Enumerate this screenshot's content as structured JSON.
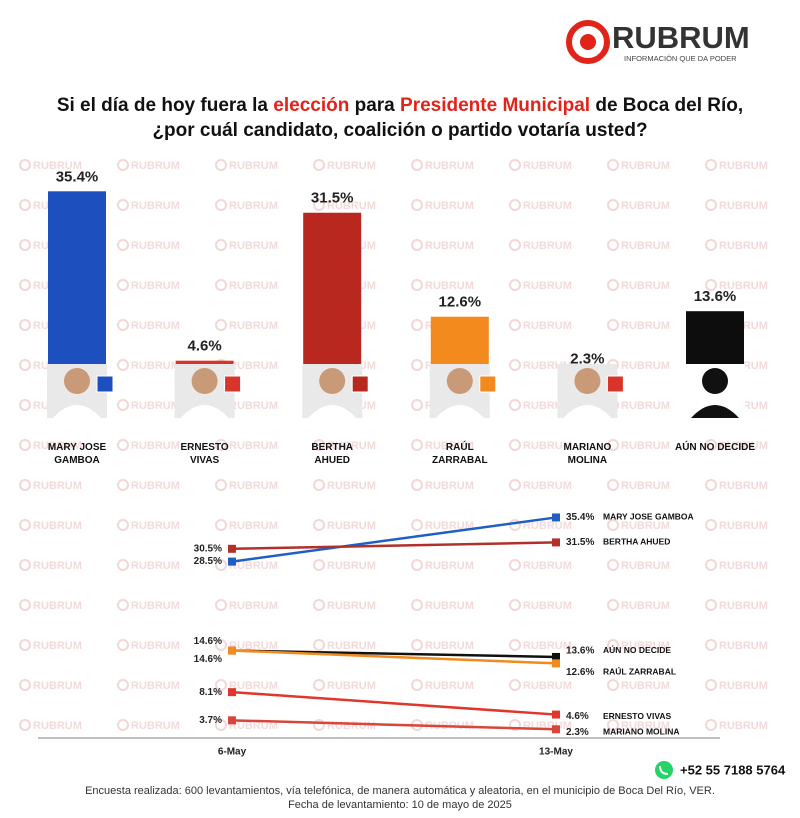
{
  "header": {
    "brand": "RUBRUM",
    "tagline": "INFORMACIÓN QUE DA PODER"
  },
  "title": {
    "line1": [
      {
        "text": "Si el día de hoy fuera la ",
        "highlight": false
      },
      {
        "text": "elección",
        "highlight": true
      },
      {
        "text": " para ",
        "highlight": false
      },
      {
        "text": "Presidente Municipal",
        "highlight": true
      },
      {
        "text": " de Boca del Río,",
        "highlight": false
      }
    ],
    "line2": "¿por cuál candidato, coalición o partido votaría usted?"
  },
  "watermark": "RUBRUM",
  "chart_data": [
    {
      "type": "bar",
      "categories": [
        "MARY JOSE\nGAMBOA",
        "ERNESTO\nVIVAS",
        "BERTHA\nAHUED",
        "RAÚL\nZARRABAL",
        "MARIANO\nMOLINA",
        "AÚN NO DECIDE"
      ],
      "values": [
        35.4,
        4.6,
        31.5,
        12.6,
        2.3,
        13.6
      ],
      "value_labels": [
        "35.4%",
        "4.6%",
        "31.5%",
        "12.6%",
        "2.3%",
        "13.6%"
      ],
      "colors": [
        "#1d4fbf",
        "#d8352a",
        "#b8281f",
        "#f28a1e",
        "#d8352a",
        "#0d0d0d"
      ]
    },
    {
      "type": "line",
      "x": [
        "6-May",
        "13-May"
      ],
      "series": [
        {
          "name": "MARY JOSE GAMBOA",
          "color": "#1f5fc4",
          "values": [
            28.5,
            35.4
          ],
          "value_labels": [
            "28.5%",
            "35.4%"
          ]
        },
        {
          "name": "BERTHA AHUED",
          "color": "#b3302a",
          "values": [
            30.5,
            31.5
          ],
          "value_labels": [
            "30.5%",
            "31.5%"
          ]
        },
        {
          "name": "AÚN NO DECIDE",
          "color": "#111111",
          "values": [
            14.6,
            13.6
          ],
          "value_labels": [
            "14.6%",
            "13.6%"
          ]
        },
        {
          "name": "RAÚL ZARRABAL",
          "color": "#f28a1e",
          "values": [
            14.6,
            12.6
          ],
          "value_labels": [
            "14.6%",
            "12.6%"
          ]
        },
        {
          "name": "ERNESTO VIVAS",
          "color": "#e0362c",
          "values": [
            8.1,
            4.6
          ],
          "value_labels": [
            "8.1%",
            "4.6%"
          ]
        },
        {
          "name": "MARIANO MOLINA",
          "color": "#d8453a",
          "values": [
            3.7,
            2.3
          ],
          "value_labels": [
            "3.7%",
            "2.3%"
          ]
        }
      ]
    }
  ],
  "footer": {
    "phone": "+52 55 7188 5764",
    "note": "Encuesta realizada: 600 levantamientos, vía telefónica, de manera automática y aleatoria, en el municipio de Boca Del Río, VER.",
    "date": "Fecha de levantamiento: 10 de mayo de 2025"
  }
}
